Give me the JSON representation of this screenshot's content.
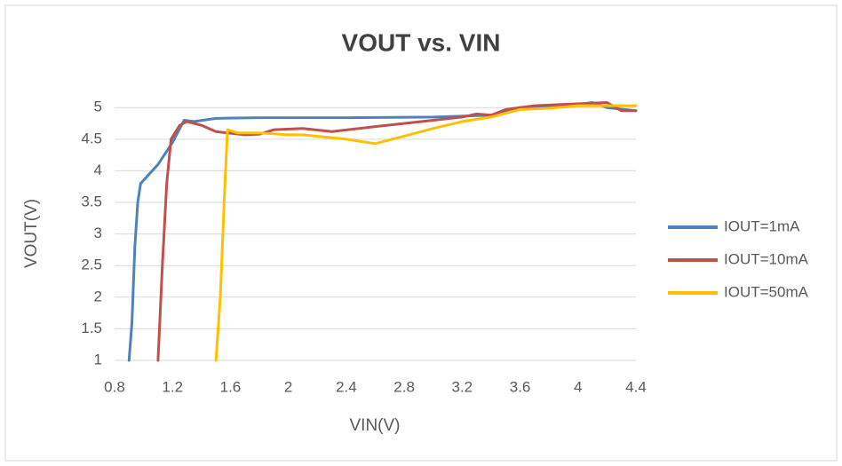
{
  "chart_data": {
    "type": "line",
    "title": "VOUT vs. VIN",
    "x_label": "VIN(V)",
    "y_label": "VOUT(V)",
    "xlim": [
      0.8,
      4.4
    ],
    "xticks": [
      0.8,
      1.2,
      1.6,
      2,
      2.4,
      2.8,
      3.2,
      3.6,
      4,
      4.4
    ],
    "ylim": [
      1,
      5.2
    ],
    "yticks": [
      1,
      1.5,
      2,
      2.5,
      3,
      3.5,
      4,
      4.5,
      5
    ],
    "grid": true,
    "legend": "right",
    "series": [
      {
        "name": "IOUT=1mA",
        "color": "#4f81bd",
        "x": [
          0.9,
          0.92,
          0.94,
          0.96,
          0.98,
          1.0,
          1.1,
          1.2,
          1.28,
          1.35,
          1.5,
          1.8,
          2.4,
          3.0,
          3.4,
          3.6,
          3.8,
          4.0,
          4.1,
          4.2,
          4.4
        ],
        "values": [
          1,
          1.6,
          2.8,
          3.5,
          3.8,
          3.85,
          4.1,
          4.45,
          4.8,
          4.78,
          4.83,
          4.84,
          4.84,
          4.85,
          4.88,
          5.0,
          5.02,
          5.05,
          5.08,
          5.0,
          4.95
        ]
      },
      {
        "name": "IOUT=10mA",
        "color": "#c0504d",
        "x": [
          1.1,
          1.13,
          1.16,
          1.19,
          1.25,
          1.3,
          1.4,
          1.5,
          1.7,
          1.8,
          1.9,
          2.1,
          2.3,
          2.6,
          3.0,
          3.2,
          3.3,
          3.4,
          3.5,
          3.7,
          3.9,
          4.2,
          4.3,
          4.4
        ],
        "values": [
          1,
          2.5,
          3.8,
          4.5,
          4.72,
          4.78,
          4.72,
          4.62,
          4.57,
          4.58,
          4.65,
          4.67,
          4.62,
          4.7,
          4.8,
          4.85,
          4.9,
          4.88,
          4.97,
          5.03,
          5.05,
          5.08,
          4.95,
          4.95
        ]
      },
      {
        "name": "IOUT=50mA",
        "color": "#ffc000",
        "x": [
          1.5,
          1.53,
          1.56,
          1.58,
          1.65,
          1.8,
          2.0,
          2.1,
          2.4,
          2.6,
          2.8,
          3.0,
          3.2,
          3.4,
          3.6,
          3.8,
          4.0,
          4.2,
          4.4
        ],
        "values": [
          1,
          2,
          3.7,
          4.65,
          4.6,
          4.6,
          4.57,
          4.57,
          4.5,
          4.43,
          4.55,
          4.67,
          4.78,
          4.85,
          4.97,
          4.99,
          5.03,
          5.03,
          5.03
        ]
      }
    ]
  }
}
